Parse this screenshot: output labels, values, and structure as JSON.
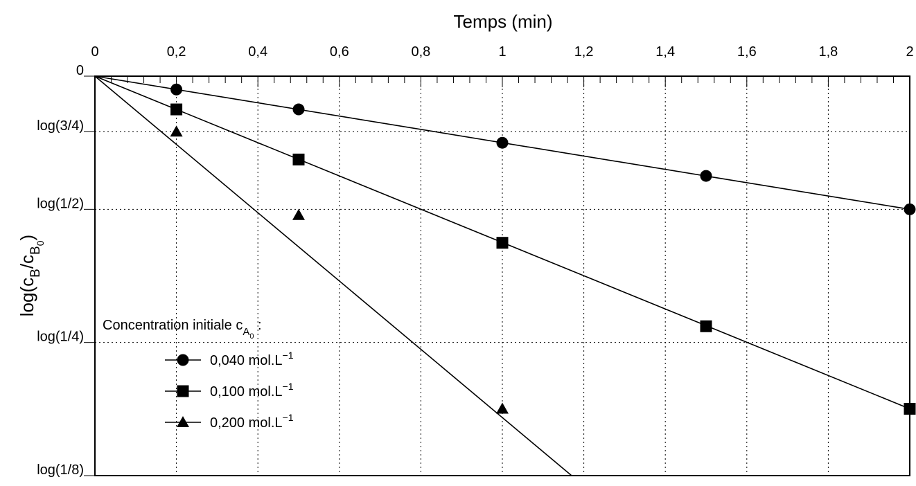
{
  "chart_data": {
    "type": "line",
    "title": "Temps (min)",
    "xlabel": "Temps (min)",
    "ylabel": "log(c_B/c_B0)",
    "ylabel_parts": {
      "prefix": "log(c",
      "sub1": "B",
      "slash": "/c",
      "sub2": "B",
      "sub3": "0",
      "suffix": ")"
    },
    "xlim": [
      0,
      2
    ],
    "xticks": [
      0,
      0.2,
      0.4,
      0.6,
      0.8,
      1,
      1.2,
      1.4,
      1.6,
      1.8,
      2
    ],
    "xtick_labels": [
      "0",
      "0,2",
      "0,4",
      "0,6",
      "0,8",
      "1",
      "1,2",
      "1,4",
      "1,6",
      "1,8",
      "2"
    ],
    "x_axis_position": "top",
    "yscale": "log2",
    "ylim": [
      0.125,
      1
    ],
    "yticks": [
      1,
      0.75,
      0.5,
      0.25,
      0.125
    ],
    "ytick_labels": [
      "0",
      "log(3/4)",
      "log(1/2)",
      "log(1/4)",
      "log(1/8)"
    ],
    "grid": true,
    "legend": {
      "title_prefix": "Concentration initiale c",
      "title_sub": "A",
      "title_subsub": "0",
      "title_suffix": " :",
      "placement": "bottom-left"
    },
    "series": [
      {
        "name": "0,040 mol.L",
        "name_sup": "−1",
        "marker": "circle",
        "x": [
          0.2,
          0.5,
          1,
          1.5,
          2
        ],
        "y": [
          0.933,
          0.841,
          0.707,
          0.595,
          0.5
        ],
        "line_x": [
          0,
          2
        ],
        "line_y": [
          1,
          0.5
        ]
      },
      {
        "name": "0,100 mol.L",
        "name_sup": "−1",
        "marker": "square",
        "x": [
          0.2,
          0.5,
          1,
          1.5,
          2
        ],
        "y": [
          0.841,
          0.648,
          0.42,
          0.272,
          0.177
        ],
        "line_x": [
          0,
          2
        ],
        "line_y": [
          1,
          0.177
        ]
      },
      {
        "name": "0,200 mol.L",
        "name_sup": "−1",
        "marker": "triangle",
        "x": [
          0.2,
          0.5,
          1
        ],
        "y": [
          0.749,
          0.485,
          0.177
        ],
        "line_x": [
          0,
          1.17
        ],
        "line_y": [
          1,
          0.125
        ]
      }
    ]
  }
}
